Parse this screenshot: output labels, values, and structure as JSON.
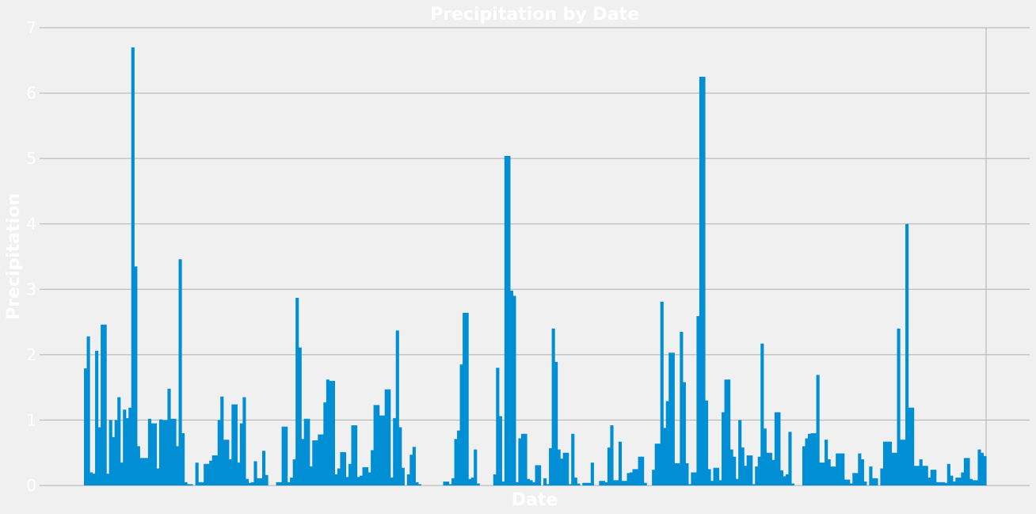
{
  "chart_data": {
    "type": "bar",
    "title": "Precipitation by Date",
    "xlabel": "Date",
    "ylabel": "Precipitation",
    "ylim": [
      0,
      7
    ],
    "yticks": [
      0,
      1,
      2,
      3,
      4,
      5,
      6,
      7
    ],
    "grid": true,
    "legend": "none",
    "series": [
      {
        "color": "#008fd5",
        "values": [
          1.79,
          2.28,
          0.2,
          0.18,
          2.06,
          0.89,
          2.46,
          2.46,
          0.18,
          1.0,
          0.74,
          1.0,
          1.35,
          0.35,
          1.16,
          1.03,
          1.19,
          6.7,
          3.35,
          0.6,
          0.42,
          0.42,
          0.42,
          1.02,
          0.95,
          0.95,
          0.26,
          1.01,
          1.0,
          1.0,
          1.48,
          1.02,
          1.02,
          0.6,
          3.46,
          0.8,
          0.05,
          0.02,
          0.02,
          0.0,
          0.35,
          0.05,
          0.05,
          0.33,
          0.33,
          0.38,
          0.46,
          0.46,
          1.0,
          1.36,
          0.7,
          0.7,
          0.4,
          1.24,
          1.24,
          0.35,
          0.95,
          1.35,
          0.1,
          0.04,
          0.05,
          0.37,
          0.11,
          0.11,
          0.53,
          0.16,
          0.0,
          0.0,
          0.0,
          0.05,
          0.05,
          0.9,
          0.9,
          0.05,
          0.12,
          0.4,
          2.87,
          2.11,
          0.71,
          1.02,
          1.02,
          0.29,
          0.69,
          0.69,
          0.78,
          0.78,
          1.27,
          1.62,
          1.6,
          1.6,
          0.17,
          0.26,
          0.51,
          0.51,
          0.13,
          0.33,
          0.92,
          0.92,
          0.13,
          0.15,
          0.28,
          0.28,
          0.2,
          0.54,
          1.23,
          1.23,
          1.07,
          1.07,
          1.47,
          1.47,
          0.12,
          1.03,
          2.37,
          0.89,
          0.27,
          0.0,
          0.17,
          0.47,
          0.59,
          0.05,
          0.02,
          0.0,
          0.0,
          0.0,
          0.0,
          0.0,
          0.0,
          0.0,
          0.0,
          0.06,
          0.06,
          0.02,
          0.11,
          0.71,
          0.84,
          1.85,
          2.64,
          2.64,
          0.1,
          0.12,
          0.55,
          0.03,
          0.0,
          0.0,
          0.0,
          0.0,
          0.0,
          0.17,
          1.8,
          1.06,
          0.06,
          5.04,
          5.04,
          2.98,
          2.9,
          0.05,
          0.72,
          0.79,
          0.79,
          0.1,
          0.08,
          0.05,
          0.31,
          0.31,
          0.0,
          0.11,
          0.02,
          0.57,
          2.4,
          1.89,
          0.55,
          0.41,
          0.5,
          0.5,
          0.02,
          0.79,
          0.12,
          0.03,
          0.0,
          0.04,
          0.04,
          0.04,
          0.35,
          0.0,
          0.0,
          0.07,
          0.07,
          0.05,
          0.58,
          0.92,
          0.08,
          0.08,
          0.67,
          0.07,
          0.07,
          0.19,
          0.2,
          0.25,
          0.25,
          0.44,
          0.44,
          0.04,
          0.0,
          0.0,
          0.24,
          0.64,
          0.64,
          2.81,
          0.88,
          1.29,
          2.03,
          2.03,
          0.34,
          0.34,
          2.35,
          1.58,
          0.34,
          0.02,
          0.2,
          0.2,
          2.59,
          6.25,
          6.25,
          1.3,
          0.25,
          0.07,
          0.27,
          0.27,
          0.08,
          1.12,
          1.62,
          1.62,
          0.55,
          0.44,
          0.1,
          1.0,
          0.58,
          0.3,
          0.46,
          0.46,
          0.02,
          0.29,
          0.44,
          2.17,
          0.87,
          0.5,
          0.5,
          0.39,
          1.12,
          1.12,
          0.23,
          0.14,
          0.17,
          0.82,
          0.03,
          0.0,
          0.0,
          0.0,
          0.6,
          0.72,
          0.79,
          0.8,
          0.8,
          1.69,
          0.35,
          0.35,
          0.7,
          0.4,
          0.29,
          0.29,
          0.49,
          0.49,
          0.49,
          0.09,
          0.09,
          0.03,
          0.19,
          0.19,
          0.49,
          0.4,
          0.06,
          0.0,
          0.29,
          0.11,
          0.11,
          0.0,
          0.26,
          0.67,
          0.67,
          0.67,
          0.5,
          0.5,
          2.4,
          0.7,
          0.7,
          4.0,
          1.19,
          1.19,
          0.3,
          0.3,
          0.4,
          0.3,
          0.3,
          0.12,
          0.24,
          0.24,
          0.05,
          0.05,
          0.05,
          0.04,
          0.33,
          0.15,
          0.06,
          0.12,
          0.12,
          0.2,
          0.42,
          0.42,
          0.1,
          0.08,
          0.08,
          0.55,
          0.5,
          0.45
        ]
      }
    ]
  }
}
